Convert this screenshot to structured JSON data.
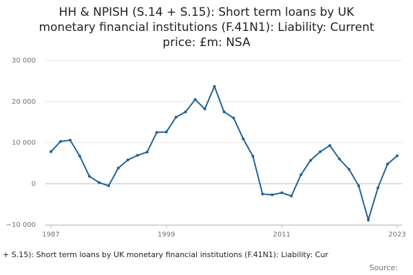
{
  "chart_data": {
    "type": "line",
    "title": [
      "HH & NPISH (S.14 + S.15): Short term loans by UK",
      "monetary financial institutions (F.41N1): Liability: Current",
      "price: £m: NSA"
    ],
    "x": [
      1987,
      1988,
      1989,
      1990,
      1991,
      1992,
      1993,
      1994,
      1995,
      1996,
      1997,
      1998,
      1999,
      2000,
      2001,
      2002,
      2003,
      2004,
      2005,
      2006,
      2007,
      2008,
      2009,
      2010,
      2011,
      2012,
      2013,
      2014,
      2015,
      2016,
      2017,
      2018,
      2019,
      2020,
      2021,
      2022,
      2023
    ],
    "series": [
      {
        "color": "#206095",
        "values": [
          7800,
          10300,
          10600,
          6700,
          1800,
          300,
          -500,
          3800,
          5800,
          6900,
          7700,
          12500,
          12600,
          16200,
          17500,
          20500,
          18200,
          23700,
          17500,
          16000,
          10900,
          6700,
          -2500,
          -2700,
          -2200,
          -3000,
          2200,
          5700,
          7800,
          9300,
          6000,
          3500,
          -500,
          -8800,
          -1000,
          4800,
          6800
        ]
      }
    ],
    "xlim": [
      1987,
      2023
    ],
    "xticks": [
      1987,
      1999,
      2011,
      2023
    ],
    "ylim": [
      -10000,
      30000
    ],
    "yticks": [
      {
        "value": -10000,
        "label": "−10 000"
      },
      0,
      {
        "value": 10000,
        "label": "10 000"
      },
      {
        "value": 20000,
        "label": "20 000"
      },
      {
        "value": 30000,
        "label": "30 000"
      }
    ],
    "grid": true,
    "footer": "+ S.15): Short term loans by UK monetary financial institutions (F.41N1): Liability: Cur",
    "source": "Source:"
  }
}
